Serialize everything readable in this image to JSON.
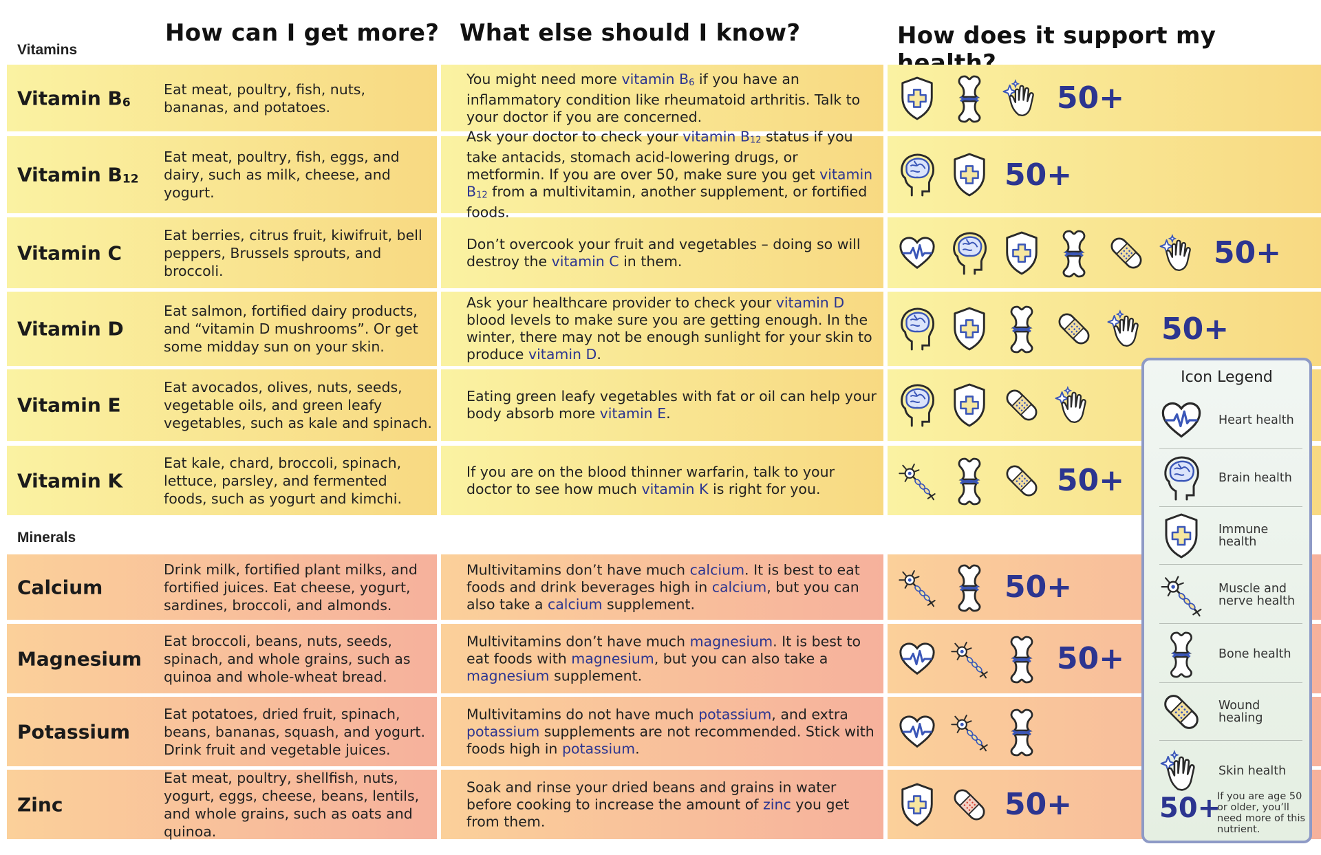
{
  "headers": {
    "get_more": "How can I get more?",
    "know": "What else should I know?",
    "support": "How does it support my health?"
  },
  "sections": {
    "vitamins": "Vitamins",
    "minerals": "Minerals"
  },
  "colors": {
    "vitamin_row_top": "#faf2a2",
    "vitamin_row_bottom": "#f8d982",
    "mineral_row_top": "#fbd09a",
    "mineral_row_bottom": "#f6b19c",
    "accent": "#2c3590",
    "icon_blue": "#3a56b8",
    "legend_border": "#8e9ac6"
  },
  "rows": [
    {
      "name_main": "Vitamin B",
      "name_sub": "6",
      "get": "Eat meat, poultry, fish, nuts, bananas, and potatoes.",
      "know": [
        {
          "t": "You might need more "
        },
        {
          "t": "vitamin B",
          "h": 1
        },
        {
          "t": "6",
          "h": 1,
          "s": 1
        },
        {
          "t": " if you have an inflammatory condition like rheumatoid arthritis. Talk to your doctor if you are concerned."
        }
      ],
      "icons": [
        "immune-icon",
        "bone-icon",
        "skin-icon"
      ],
      "fifty": "50+"
    },
    {
      "name_main": "Vitamin B",
      "name_sub": "12",
      "get": "Eat meat, poultry, fish, eggs, and dairy, such as milk, cheese, and yogurt.",
      "know": [
        {
          "t": "Ask your doctor to check your "
        },
        {
          "t": "vitamin B",
          "h": 1
        },
        {
          "t": "12",
          "h": 1,
          "s": 1
        },
        {
          "t": " status if you take antacids, stomach acid-lowering drugs, or metformin. If you are over 50, make sure you get "
        },
        {
          "t": "vitamin B",
          "h": 1
        },
        {
          "t": "12",
          "h": 1,
          "s": 1
        },
        {
          "t": " from a multivitamin, another supplement, or fortified foods."
        }
      ],
      "icons": [
        "brain-icon",
        "immune-icon"
      ],
      "fifty": "50+"
    },
    {
      "name_main": "Vitamin C",
      "name_sub": "",
      "get": "Eat berries, citrus fruit, kiwifruit, bell peppers, Brussels sprouts, and broccoli.",
      "know": [
        {
          "t": "Don’t overcook your fruit and vegetables – doing so will destroy the "
        },
        {
          "t": "vitamin C",
          "h": 1
        },
        {
          "t": " in them."
        }
      ],
      "icons": [
        "heart-icon",
        "brain-icon",
        "immune-icon",
        "bone-icon",
        "bandage-icon",
        "skin-icon"
      ],
      "fifty": "50+"
    },
    {
      "name_main": "Vitamin D",
      "name_sub": "",
      "get": "Eat salmon, fortified dairy products, and “vitamin D mushrooms”. Or get some midday sun on your skin.",
      "know": [
        {
          "t": "Ask your healthcare provider to check your "
        },
        {
          "t": "vitamin D",
          "h": 1
        },
        {
          "t": " blood levels to make sure you are getting enough. In the winter, there may not be enough sunlight for your skin to produce "
        },
        {
          "t": "vitamin D",
          "h": 1
        },
        {
          "t": "."
        }
      ],
      "icons": [
        "brain-icon",
        "immune-icon",
        "bone-icon",
        "bandage-icon",
        "skin-icon"
      ],
      "fifty": "50+"
    },
    {
      "name_main": "Vitamin E",
      "name_sub": "",
      "get": "Eat avocados, olives, nuts, seeds, vegetable oils, and green leafy vegetables, such as kale and spinach.",
      "know": [
        {
          "t": "Eating green leafy vegetables with fat or oil can help your body absorb more "
        },
        {
          "t": "vitamin E",
          "h": 1
        },
        {
          "t": "."
        }
      ],
      "icons": [
        "brain-icon",
        "immune-icon",
        "bandage-icon",
        "skin-icon"
      ],
      "fifty": ""
    },
    {
      "name_main": "Vitamin K",
      "name_sub": "",
      "get": "Eat kale, chard, broccoli, spinach, lettuce, parsley, and fermented foods, such as yogurt and kimchi.",
      "know": [
        {
          "t": "If you are on the blood thinner warfarin, talk to your doctor to see how much "
        },
        {
          "t": "vitamin K",
          "h": 1
        },
        {
          "t": " is right for you."
        }
      ],
      "icons": [
        "neuron-icon",
        "bone-icon",
        "bandage-icon"
      ],
      "fifty": "50+"
    },
    {
      "name_main": "Calcium",
      "name_sub": "",
      "get": "Drink milk, fortified plant milks, and fortified juices. Eat cheese, yogurt, sardines, broccoli, and almonds.",
      "know": [
        {
          "t": "Multivitamins don’t have much "
        },
        {
          "t": "calcium",
          "h": 1
        },
        {
          "t": ". It is best to eat foods and drink beverages high in "
        },
        {
          "t": "calcium",
          "h": 1
        },
        {
          "t": ", but you can also take a "
        },
        {
          "t": "calcium",
          "h": 1
        },
        {
          "t": " supplement."
        }
      ],
      "icons": [
        "neuron-icon",
        "bone-icon"
      ],
      "fifty": "50+"
    },
    {
      "name_main": "Magnesium",
      "name_sub": "",
      "get": "Eat broccoli, beans, nuts, seeds, spinach, and whole grains, such as quinoa and whole-wheat bread.",
      "know": [
        {
          "t": "Multivitamins don’t have much "
        },
        {
          "t": "magnesium",
          "h": 1
        },
        {
          "t": ". It is best to eat foods with "
        },
        {
          "t": "magnesium",
          "h": 1
        },
        {
          "t": ", but you can also take a "
        },
        {
          "t": "magnesium",
          "h": 1
        },
        {
          "t": " supplement."
        }
      ],
      "icons": [
        "heart-icon",
        "neuron-icon",
        "bone-icon"
      ],
      "fifty": "50+"
    },
    {
      "name_main": "Potassium",
      "name_sub": "",
      "get": "Eat potatoes, dried fruit, spinach, beans, bananas, squash, and yogurt. Drink fruit and vegetable juices.",
      "know": [
        {
          "t": "Multivitamins do not have much "
        },
        {
          "t": "potassium",
          "h": 1
        },
        {
          "t": ", and extra "
        },
        {
          "t": "potassium",
          "h": 1
        },
        {
          "t": " supplements are not recommended. Stick with foods high in "
        },
        {
          "t": "potassium",
          "h": 1
        },
        {
          "t": "."
        }
      ],
      "icons": [
        "heart-icon",
        "neuron-icon",
        "bone-icon"
      ],
      "fifty": ""
    },
    {
      "name_main": "Zinc",
      "name_sub": "",
      "get": "Eat meat, poultry, shellfish, nuts, yogurt, eggs, cheese, beans, lentils, and whole grains, such as oats and quinoa.",
      "know": [
        {
          "t": "Soak and rinse your dried beans and grains in water before cooking to increase the amount of "
        },
        {
          "t": "zinc",
          "h": 1
        },
        {
          "t": " you get from them."
        }
      ],
      "icons": [
        "immune-icon",
        "bandage-red-icon"
      ],
      "fifty": "50+"
    }
  ],
  "legend": {
    "title": "Icon Legend",
    "items": [
      {
        "icon": "heart-icon",
        "label": "Heart health"
      },
      {
        "icon": "brain-icon",
        "label": "Brain health"
      },
      {
        "icon": "immune-icon",
        "label": "Immune health"
      },
      {
        "icon": "neuron-icon",
        "label": "Muscle and nerve health"
      },
      {
        "icon": "bone-icon",
        "label": "Bone health"
      },
      {
        "icon": "bandage-icon",
        "label": "Wound healing"
      },
      {
        "icon": "skin-icon",
        "label": "Skin health"
      }
    ],
    "fifty": "50+",
    "fifty_note": "If you are age 50 or older, you’ll need more of this nutrient."
  }
}
